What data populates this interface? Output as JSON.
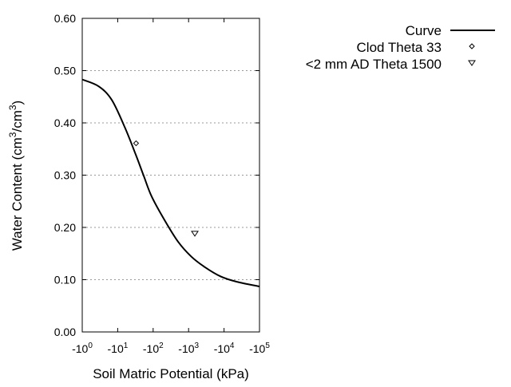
{
  "chart_data": {
    "type": "line",
    "xlabel": "Soil Matric Potential (kPa)",
    "ylabel_main": "Water Content (cm",
    "ylabel_sup1": "3",
    "ylabel_mid": "/cm",
    "ylabel_sup2": "3",
    "ylabel_end": ")",
    "x_scale": "log (negative)",
    "xlim": [
      -1,
      -100000
    ],
    "ylim": [
      0,
      0.6
    ],
    "grid": "horizontal dotted",
    "legend_placement": "top-right outside",
    "x_ticks": [
      {
        "base": "-10",
        "exp": "0",
        "value": -1
      },
      {
        "base": "-10",
        "exp": "1",
        "value": -10
      },
      {
        "base": "-10",
        "exp": "2",
        "value": -100
      },
      {
        "base": "-10",
        "exp": "3",
        "value": -1000
      },
      {
        "base": "-10",
        "exp": "4",
        "value": -10000
      },
      {
        "base": "-10",
        "exp": "5",
        "value": -100000
      }
    ],
    "y_ticks": [
      {
        "label": "0.00",
        "value": 0
      },
      {
        "label": "0.10",
        "value": 0.1
      },
      {
        "label": "0.20",
        "value": 0.2
      },
      {
        "label": "0.30",
        "value": 0.3
      },
      {
        "label": "0.40",
        "value": 0.4
      },
      {
        "label": "0.50",
        "value": 0.5
      },
      {
        "label": "0.60",
        "value": 0.6
      }
    ],
    "series": [
      {
        "name": "Curve",
        "kind": "line",
        "color": "#000000",
        "x": [
          -1,
          -2.9,
          -6.8,
          -16,
          -32,
          -54,
          -91,
          -214,
          -513,
          -1200,
          -2880,
          -8130,
          -22900,
          -100000
        ],
        "y": [
          0.483,
          0.47,
          0.444,
          0.391,
          0.34,
          0.299,
          0.259,
          0.213,
          0.172,
          0.144,
          0.124,
          0.106,
          0.096,
          0.087
        ]
      },
      {
        "name": "Clod Theta 33",
        "kind": "marker",
        "marker": "diamond",
        "x": [
          -33
        ],
        "y": [
          0.361
        ]
      },
      {
        "name": "<2 mm AD Theta 1500",
        "kind": "marker",
        "marker": "triangle-down",
        "x": [
          -1500
        ],
        "y": [
          0.188
        ]
      }
    ]
  }
}
